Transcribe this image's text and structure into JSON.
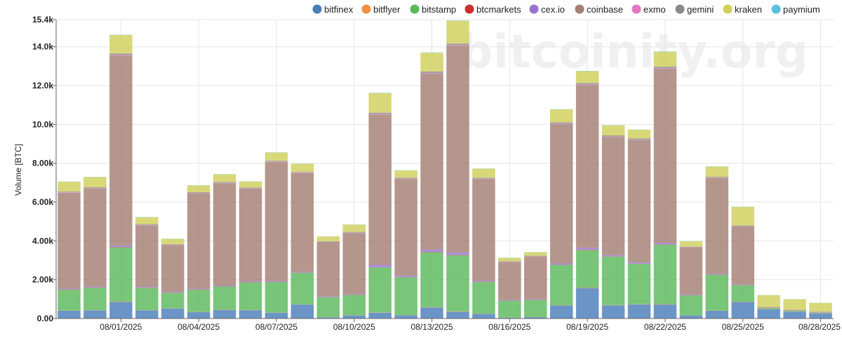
{
  "chart_data": {
    "type": "bar",
    "stacked": true,
    "watermark": "bitcoinity.org",
    "ylabel": "Volume [BTC]",
    "xlabel": "",
    "ylim": [
      0,
      15400
    ],
    "yticks": [
      {
        "value": 0,
        "label": "0.00"
      },
      {
        "value": 2000,
        "label": "2.00k"
      },
      {
        "value": 4000,
        "label": "4.00k"
      },
      {
        "value": 6000,
        "label": "6.00k"
      },
      {
        "value": 8000,
        "label": "8.00k"
      },
      {
        "value": 10000,
        "label": "10.0k"
      },
      {
        "value": 12000,
        "label": "12.0k"
      },
      {
        "value": 14000,
        "label": "14.0k"
      },
      {
        "value": 15400,
        "label": "15.4k"
      }
    ],
    "grid": true,
    "legend_position": "top",
    "categories": [
      "07/30/2025",
      "07/31/2025",
      "08/01/2025",
      "08/02/2025",
      "08/03/2025",
      "08/04/2025",
      "08/05/2025",
      "08/06/2025",
      "08/07/2025",
      "08/08/2025",
      "08/09/2025",
      "08/10/2025",
      "08/11/2025",
      "08/12/2025",
      "08/13/2025",
      "08/14/2025",
      "08/15/2025",
      "08/16/2025",
      "08/17/2025",
      "08/18/2025",
      "08/19/2025",
      "08/20/2025",
      "08/21/2025",
      "08/22/2025",
      "08/23/2025",
      "08/24/2025",
      "08/25/2025",
      "08/26/2025",
      "08/27/2025",
      "08/28/2025"
    ],
    "xtick_labels": [
      "08/01/2025",
      "08/04/2025",
      "08/07/2025",
      "08/10/2025",
      "08/13/2025",
      "08/16/2025",
      "08/19/2025",
      "08/22/2025",
      "08/25/2025",
      "08/28/2025"
    ],
    "series": [
      {
        "name": "bitfinex",
        "color": "#4a7ebb",
        "values": [
          400,
          420,
          850,
          420,
          520,
          330,
          440,
          430,
          300,
          720,
          60,
          160,
          300,
          170,
          570,
          350,
          240,
          40,
          70,
          670,
          1570,
          680,
          730,
          720,
          160,
          400,
          850,
          480,
          350,
          260
        ]
      },
      {
        "name": "bitflyer",
        "color": "#f28f43",
        "values": [
          10,
          10,
          20,
          10,
          10,
          10,
          10,
          10,
          10,
          10,
          5,
          10,
          15,
          10,
          20,
          20,
          10,
          5,
          5,
          15,
          20,
          15,
          15,
          20,
          5,
          10,
          15,
          5,
          5,
          5
        ]
      },
      {
        "name": "bitstamp",
        "color": "#5cb85c",
        "values": [
          1080,
          1160,
          2800,
          1140,
          800,
          1150,
          1200,
          1430,
          1570,
          1630,
          1030,
          1050,
          2320,
          1950,
          2830,
          2890,
          1640,
          870,
          880,
          2080,
          1940,
          2500,
          2070,
          3070,
          1030,
          1850,
          850,
          50,
          40,
          30
        ]
      },
      {
        "name": "btcmarkets",
        "color": "#c9302c",
        "values": [
          10,
          10,
          15,
          10,
          10,
          10,
          10,
          10,
          10,
          10,
          5,
          10,
          10,
          10,
          15,
          15,
          10,
          5,
          5,
          10,
          15,
          10,
          10,
          15,
          5,
          10,
          10,
          5,
          5,
          5
        ]
      },
      {
        "name": "cex.io",
        "color": "#9b72cf",
        "values": [
          40,
          40,
          80,
          40,
          30,
          40,
          40,
          40,
          40,
          40,
          30,
          40,
          120,
          70,
          120,
          120,
          50,
          30,
          30,
          60,
          100,
          60,
          60,
          80,
          30,
          40,
          30,
          10,
          10,
          10
        ]
      },
      {
        "name": "coinbase",
        "color": "#a37f74",
        "values": [
          4940,
          5060,
          9780,
          3180,
          2420,
          4910,
          5270,
          4770,
          6140,
          5080,
          2810,
          3130,
          7750,
          4980,
          9060,
          10660,
          5250,
          1970,
          2220,
          7190,
          8380,
          6090,
          6320,
          8970,
          2450,
          4930,
          2980,
          30,
          30,
          30
        ]
      },
      {
        "name": "exmo",
        "color": "#e377c2",
        "values": [
          20,
          20,
          30,
          20,
          15,
          20,
          20,
          20,
          20,
          20,
          10,
          20,
          30,
          20,
          30,
          30,
          20,
          10,
          10,
          20,
          30,
          20,
          20,
          30,
          10,
          20,
          20,
          5,
          5,
          5
        ]
      },
      {
        "name": "gemini",
        "color": "#8a8a8a",
        "values": [
          40,
          40,
          80,
          40,
          30,
          40,
          40,
          40,
          40,
          40,
          30,
          40,
          60,
          40,
          80,
          80,
          40,
          20,
          20,
          60,
          80,
          60,
          60,
          70,
          20,
          40,
          40,
          10,
          10,
          10
        ]
      },
      {
        "name": "kraken",
        "color": "#cfcf5a",
        "values": [
          510,
          530,
          950,
          360,
          270,
          350,
          400,
          310,
          420,
          420,
          250,
          380,
          1010,
          380,
          970,
          1180,
          460,
          180,
          180,
          670,
          610,
          520,
          440,
          770,
          270,
          530,
          960,
          610,
          540,
          450
        ]
      },
      {
        "name": "paymium",
        "color": "#5bc0de",
        "values": [
          10,
          10,
          15,
          10,
          10,
          10,
          10,
          10,
          10,
          10,
          5,
          10,
          15,
          10,
          15,
          15,
          10,
          5,
          5,
          10,
          15,
          10,
          10,
          15,
          5,
          10,
          10,
          5,
          5,
          5
        ]
      }
    ]
  }
}
